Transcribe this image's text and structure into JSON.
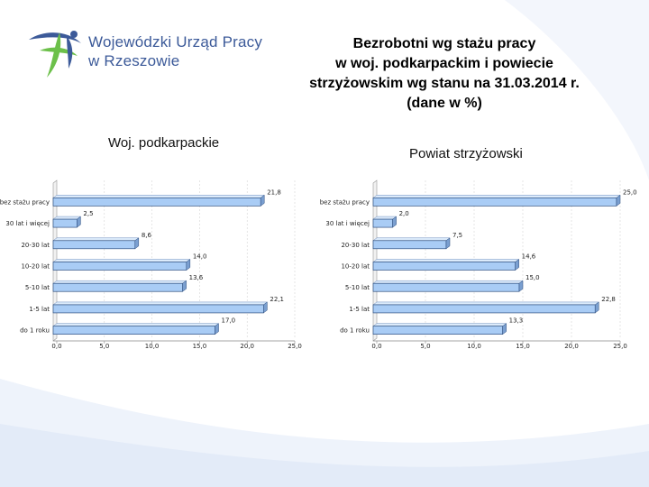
{
  "header": {
    "logo_line1": "Wojewódzki Urząd Pracy",
    "logo_line2": "w Rzeszowie",
    "title_lines": [
      "Bezrobotni wg stażu pracy",
      "w woj. podkarpackim i powiecie",
      "strzyżowskim wg stanu na 31.03.2014 r.",
      "(dane w %)"
    ]
  },
  "colors": {
    "bar_fill": "#a9ccf5",
    "bar_top": "#dcebfb",
    "bar_side": "#7a9fd0",
    "logo_blue": "#3c5a99",
    "logo_green": "#6cc04a",
    "swoosh": "#eaf0fa"
  },
  "chart_data": [
    {
      "type": "bar",
      "orientation": "horizontal",
      "title": "Woj. podkarpackie",
      "categories": [
        "bez stażu pracy",
        "30 lat i więcej",
        "20-30 lat",
        "10-20 lat",
        "5-10 lat",
        "1-5 lat",
        "do 1 roku"
      ],
      "values": [
        21.8,
        2.5,
        8.6,
        14.0,
        13.6,
        22.1,
        17.0
      ],
      "value_labels": [
        "21,8",
        "2,5",
        "8,6",
        "14,0",
        "13,6",
        "22,1",
        "17,0"
      ],
      "xlim": [
        0,
        25
      ],
      "x_ticks": [
        "0,0",
        "5,0",
        "10,0",
        "15,0",
        "20,0",
        "25,0"
      ]
    },
    {
      "type": "bar",
      "orientation": "horizontal",
      "title": "Powiat strzyżowski",
      "categories": [
        "bez stażu pracy",
        "30 lat i więcej",
        "20-30 lat",
        "10-20 lat",
        "5-10 lat",
        "1-5 lat",
        "do 1 roku"
      ],
      "values": [
        25.0,
        2.0,
        7.5,
        14.6,
        15.0,
        22.8,
        13.3
      ],
      "value_labels": [
        "25,0",
        "2,0",
        "7,5",
        "14,6",
        "15,0",
        "22,8",
        "13,3"
      ],
      "xlim": [
        0,
        25
      ],
      "x_ticks": [
        "0,0",
        "5,0",
        "10,0",
        "15,0",
        "20,0",
        "25,0"
      ]
    }
  ]
}
